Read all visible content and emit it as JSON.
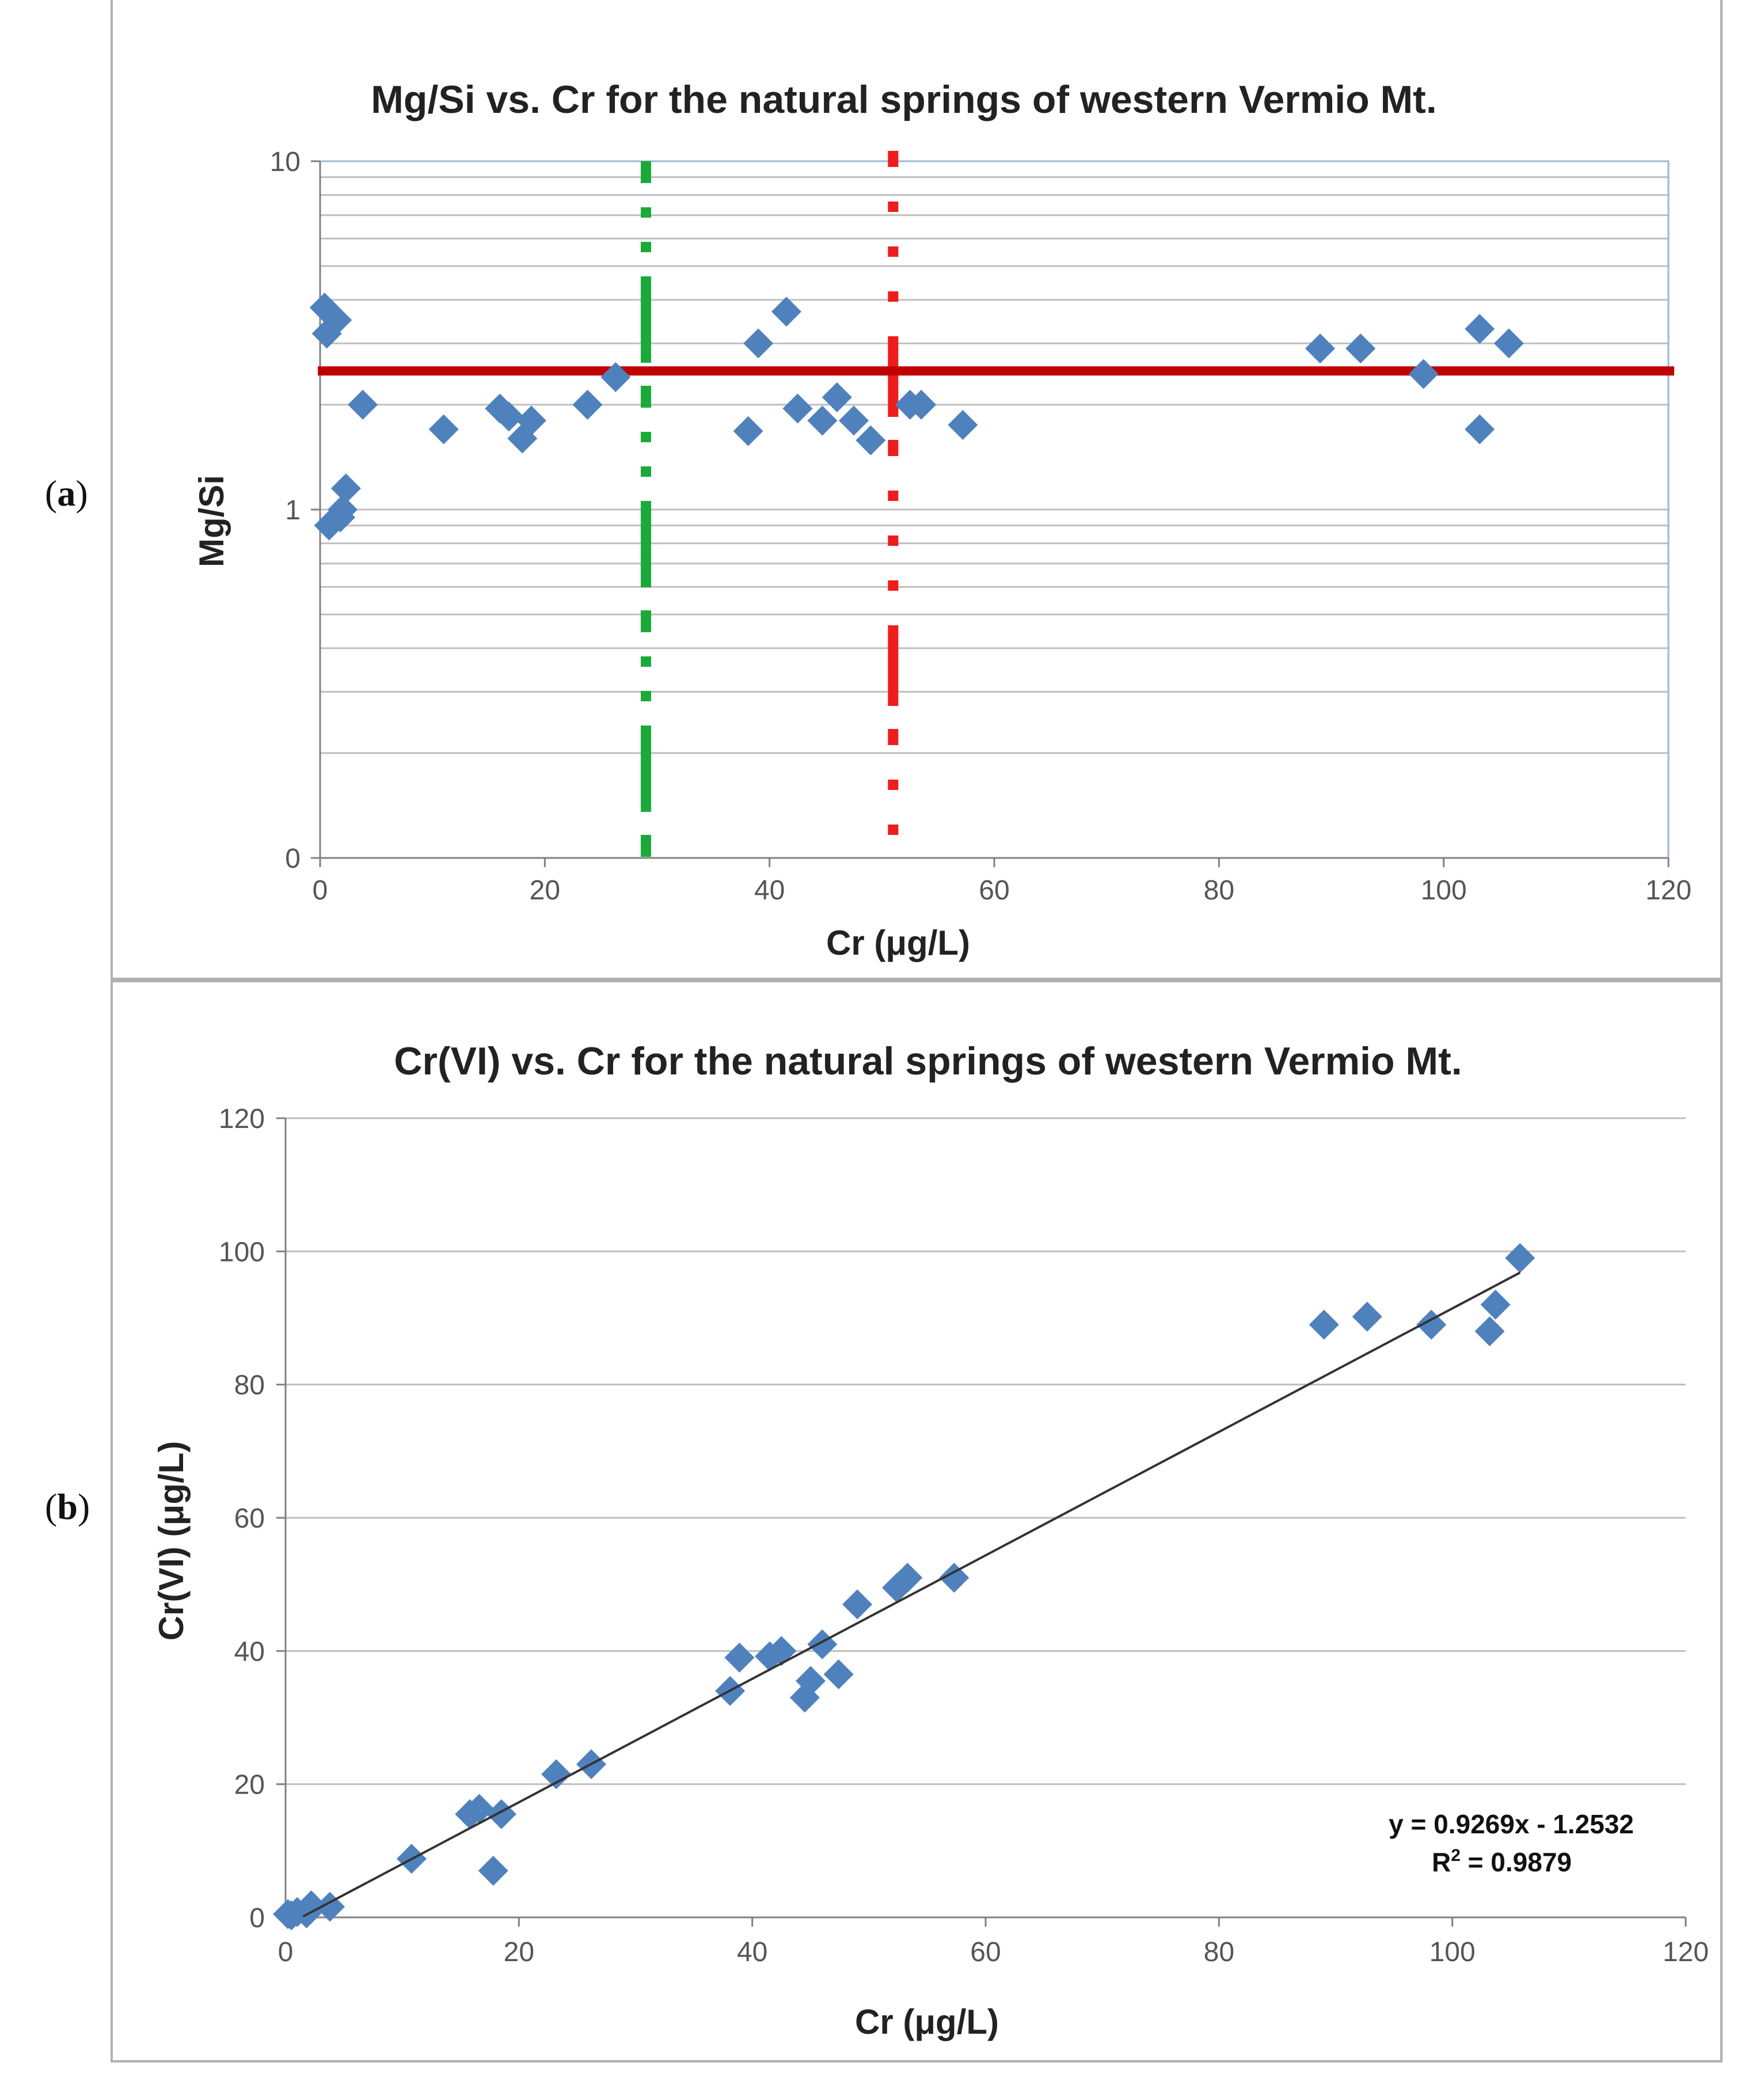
{
  "panel_labels": {
    "a": "a",
    "b": "b"
  },
  "colors": {
    "marker": "#4f81bd",
    "threshold_line": "#c00000",
    "green_dashed": "#1aaa3a",
    "red_dashed": "#ee1c1c",
    "grid": "#bfbfbf",
    "plot_border_a": "#9ab8d8",
    "trendline": "#333333"
  },
  "chart_data": [
    {
      "id": "a",
      "type": "scatter",
      "title": "Mg/Si vs. Cr for the natural springs of western Vermio Mt.",
      "xlabel": "Cr (μg/L)",
      "ylabel": "Mg/Si",
      "x_scale": "linear",
      "y_scale": "log",
      "xlim": [
        0,
        120
      ],
      "x_ticks": [
        "0",
        "20",
        "40",
        "60",
        "80",
        "100",
        "120"
      ],
      "y_ticks": [
        "0",
        "1",
        "10"
      ],
      "marker": "diamond",
      "points": [
        [
          0.4,
          3.8
        ],
        [
          0.6,
          3.2
        ],
        [
          1.5,
          3.5
        ],
        [
          0.8,
          0.9
        ],
        [
          1.8,
          0.95
        ],
        [
          2.0,
          1.0
        ],
        [
          2.3,
          1.15
        ],
        [
          3.8,
          2.0
        ],
        [
          11,
          1.7
        ],
        [
          16,
          1.95
        ],
        [
          16.8,
          1.85
        ],
        [
          18,
          1.6
        ],
        [
          18.8,
          1.8
        ],
        [
          23.8,
          2.0
        ],
        [
          26.3,
          2.4
        ],
        [
          38.1,
          1.68
        ],
        [
          39,
          3.0
        ],
        [
          41.5,
          3.7
        ],
        [
          42.5,
          1.95
        ],
        [
          44.7,
          1.8
        ],
        [
          46,
          2.1
        ],
        [
          47.5,
          1.8
        ],
        [
          49,
          1.58
        ],
        [
          52.5,
          2.0
        ],
        [
          53.5,
          2.0
        ],
        [
          57.2,
          1.75
        ],
        [
          89,
          2.9
        ],
        [
          92.6,
          2.9
        ],
        [
          98.2,
          2.45
        ],
        [
          103.2,
          3.3
        ],
        [
          103.2,
          1.7
        ],
        [
          105.8,
          3.0
        ]
      ],
      "threshold_y": 2.5,
      "green_dashed_x": 29,
      "red_dashed_x": 51
    },
    {
      "id": "b",
      "type": "scatter",
      "title": "Cr(VI) vs. Cr for the natural springs of western Vermio Mt.",
      "xlabel": "Cr (μg/L)",
      "ylabel": "Cr(VI) (μg/L)",
      "xlim": [
        0,
        120
      ],
      "ylim": [
        0,
        120
      ],
      "x_ticks": [
        "0",
        "20",
        "40",
        "60",
        "80",
        "100",
        "120"
      ],
      "y_ticks": [
        "0",
        "20",
        "40",
        "60",
        "80",
        "100",
        "120"
      ],
      "marker": "diamond",
      "points": [
        [
          0.2,
          0.5
        ],
        [
          0.5,
          0.3
        ],
        [
          1.0,
          0.8
        ],
        [
          1.8,
          0.6
        ],
        [
          2.2,
          1.8
        ],
        [
          3.8,
          1.6
        ],
        [
          10.8,
          8.8
        ],
        [
          15.8,
          15.5
        ],
        [
          16.6,
          16.3
        ],
        [
          17.8,
          7.0
        ],
        [
          18.5,
          15.5
        ],
        [
          23.2,
          21.5
        ],
        [
          26.2,
          23.0
        ],
        [
          38.1,
          34.0
        ],
        [
          38.9,
          39.0
        ],
        [
          41.5,
          39.2
        ],
        [
          42.5,
          40.0
        ],
        [
          44.5,
          33.0
        ],
        [
          45.0,
          35.5
        ],
        [
          46.0,
          41.0
        ],
        [
          47.4,
          36.5
        ],
        [
          49.0,
          47.0
        ],
        [
          52.4,
          49.5
        ],
        [
          53.3,
          51.0
        ],
        [
          57.3,
          51.0
        ],
        [
          89.0,
          89.0
        ],
        [
          92.7,
          90.2
        ],
        [
          98.2,
          89.0
        ],
        [
          103.2,
          88.0
        ],
        [
          103.7,
          92.0
        ],
        [
          105.8,
          99.0
        ]
      ],
      "trendline": {
        "slope": 0.9269,
        "intercept": -1.2532,
        "x_range": [
          1.5,
          105.8
        ]
      },
      "equation": "y = 0.9269x - 1.2532",
      "r2_label": "R",
      "r2_sup": "2",
      "r2_value": " = 0.9879"
    }
  ]
}
